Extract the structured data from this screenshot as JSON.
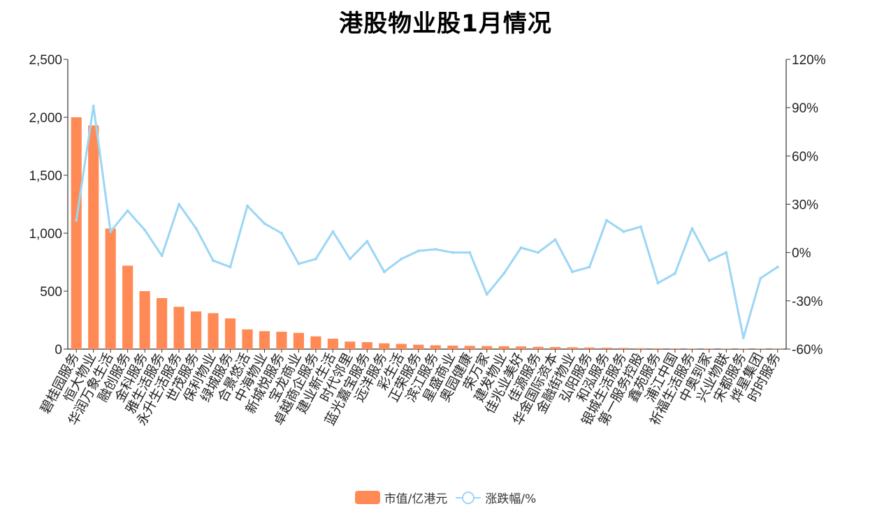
{
  "chart_data": {
    "type": "bar",
    "title": "港股物业股1月情况",
    "categories": [
      "碧桂园服务",
      "恒大物业",
      "华润万象生活",
      "融创服务",
      "金科服务",
      "雅生活服务",
      "永升生活服务",
      "世茂服务",
      "保利物业",
      "绿城服务",
      "合景悠活",
      "中海物业",
      "新城悦服务",
      "宝龙商业",
      "卓越商企服务",
      "建业新生活",
      "时代邻里",
      "蓝光嘉宝服务",
      "远洋服务",
      "彩生活",
      "正荣服务",
      "滨江服务",
      "星盛商业",
      "奥园健康",
      "荣万家",
      "建发物业",
      "佳兆业美好",
      "佳源服务",
      "华金国际资本",
      "金融街物业",
      "弘阳服务",
      "和泓服务",
      "银城生活服务",
      "第一服务控股",
      "鑫苑服务",
      "浦江中国",
      "祈福生活服务",
      "中奥到家",
      "兴业物联",
      "宋都服务",
      "烨星集团",
      "时时服务"
    ],
    "series": [
      {
        "name": "市值/亿港元",
        "type": "bar",
        "axis": "left",
        "color": "#ff8a56",
        "values": [
          2000,
          1930,
          1040,
          720,
          500,
          440,
          365,
          325,
          310,
          265,
          170,
          155,
          150,
          140,
          110,
          90,
          65,
          60,
          50,
          45,
          38,
          33,
          30,
          28,
          26,
          25,
          23,
          20,
          18,
          16,
          14,
          12,
          10,
          8,
          7,
          6,
          5,
          5,
          4,
          3,
          3,
          2
        ]
      },
      {
        "name": "涨跌幅/%",
        "type": "line",
        "axis": "right",
        "color": "#9bd6f5",
        "values": [
          20,
          91,
          13,
          26,
          14,
          -2,
          30,
          15,
          -5,
          -9,
          29,
          18,
          12,
          -7,
          -4,
          13,
          -4,
          7,
          -12,
          -4,
          1,
          2,
          0,
          0,
          -26,
          -13,
          3,
          0,
          8,
          -12,
          -9,
          20,
          13,
          16,
          -19,
          -13,
          15,
          -5,
          0,
          -53,
          -16,
          -9
        ]
      }
    ],
    "y_left": {
      "min": 0,
      "max": 2500,
      "ticks": [
        "0",
        "500",
        "1,000",
        "1,500",
        "2,000",
        "2,500"
      ]
    },
    "y_right": {
      "min": -60,
      "max": 120,
      "ticks": [
        "-60%",
        "-30%",
        "0%",
        "30%",
        "60%",
        "90%",
        "120%"
      ]
    },
    "grid": false,
    "legend_position": "bottom-center"
  }
}
